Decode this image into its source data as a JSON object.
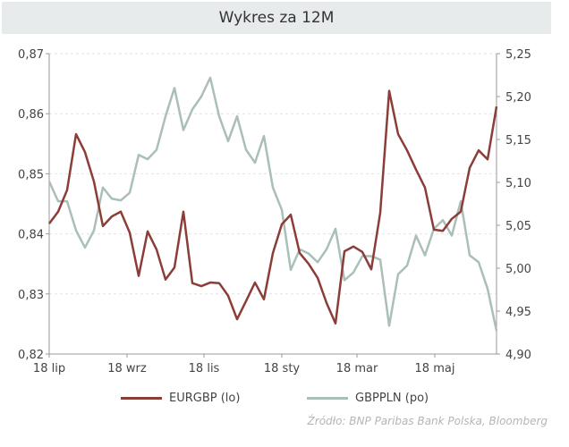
{
  "chart_data": {
    "type": "line",
    "title": "Wykres za 12M",
    "x_ticks": [
      "18 lip",
      "18 wrz",
      "18 lis",
      "18 sty",
      "18 mar",
      "18 maj"
    ],
    "y_left": {
      "ticks": [
        "0,82",
        "0,83",
        "0,84",
        "0,85",
        "0,86",
        "0,87"
      ],
      "range": [
        0.82,
        0.87
      ]
    },
    "y_right": {
      "ticks": [
        "4,90",
        "4,95",
        "5,00",
        "5,05",
        "5,10",
        "5,15",
        "5,20",
        "5,25"
      ],
      "range": [
        4.9,
        5.25
      ]
    },
    "grid": "horizontal dashed",
    "legend_position": "bottom",
    "series": [
      {
        "name": "EURGBP (lo)",
        "axis": "left",
        "color": "#8b3d38",
        "values": [
          0.8417,
          0.8437,
          0.8473,
          0.8566,
          0.8536,
          0.8487,
          0.8413,
          0.8429,
          0.8437,
          0.8402,
          0.833,
          0.8404,
          0.8374,
          0.8324,
          0.8344,
          0.8437,
          0.8318,
          0.8313,
          0.8319,
          0.8318,
          0.8297,
          0.8258,
          0.8288,
          0.8319,
          0.8291,
          0.8368,
          0.8416,
          0.8432,
          0.8368,
          0.835,
          0.8327,
          0.8285,
          0.8251,
          0.8371,
          0.8379,
          0.837,
          0.8341,
          0.8435,
          0.8638,
          0.8566,
          0.8539,
          0.8507,
          0.8477,
          0.8407,
          0.8405,
          0.8425,
          0.8437,
          0.851,
          0.8539,
          0.8524,
          0.8612
        ]
      },
      {
        "name": "GBPPLN (po)",
        "axis": "right",
        "color": "#aabfb7",
        "values": [
          5.101,
          5.078,
          5.078,
          5.044,
          5.024,
          5.044,
          5.094,
          5.081,
          5.079,
          5.088,
          5.132,
          5.127,
          5.138,
          5.177,
          5.21,
          5.161,
          5.185,
          5.2,
          5.222,
          5.177,
          5.148,
          5.177,
          5.138,
          5.123,
          5.154,
          5.094,
          5.068,
          4.998,
          5.022,
          5.017,
          5.007,
          5.022,
          5.046,
          4.986,
          4.995,
          5.014,
          5.014,
          5.01,
          4.933,
          4.993,
          5.003,
          5.038,
          5.015,
          5.046,
          5.056,
          5.038,
          5.078,
          5.015,
          5.007,
          4.976,
          4.927
        ]
      }
    ]
  },
  "source": "Źródło:  BNP Paribas Bank Polska, Bloomberg"
}
